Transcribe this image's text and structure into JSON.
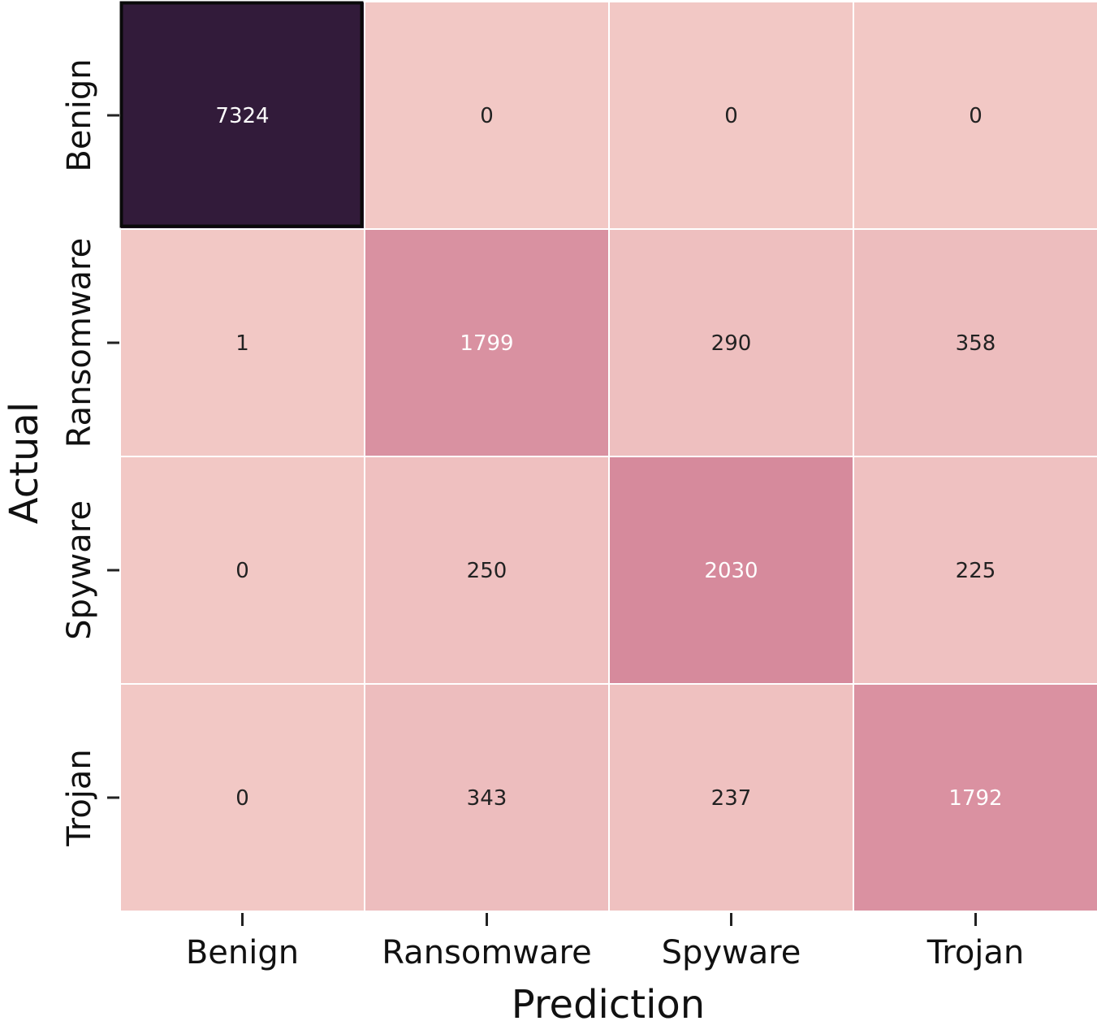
{
  "chart_data": {
    "type": "heatmap",
    "title": "",
    "xlabel": "Prediction",
    "ylabel": "Actual",
    "x_categories": [
      "Benign",
      "Ransomware",
      "Spyware",
      "Trojan"
    ],
    "y_categories": [
      "Benign",
      "Ransomware",
      "Spyware",
      "Trojan"
    ],
    "values": [
      [
        7324,
        0,
        0,
        0
      ],
      [
        1,
        1799,
        290,
        358
      ],
      [
        0,
        250,
        2030,
        225
      ],
      [
        0,
        343,
        237,
        1792
      ]
    ],
    "colormap": {
      "low": "#f2c8c5",
      "mid": "#d6899c",
      "high": "#321b3a"
    },
    "legend": "none",
    "grid": false
  }
}
